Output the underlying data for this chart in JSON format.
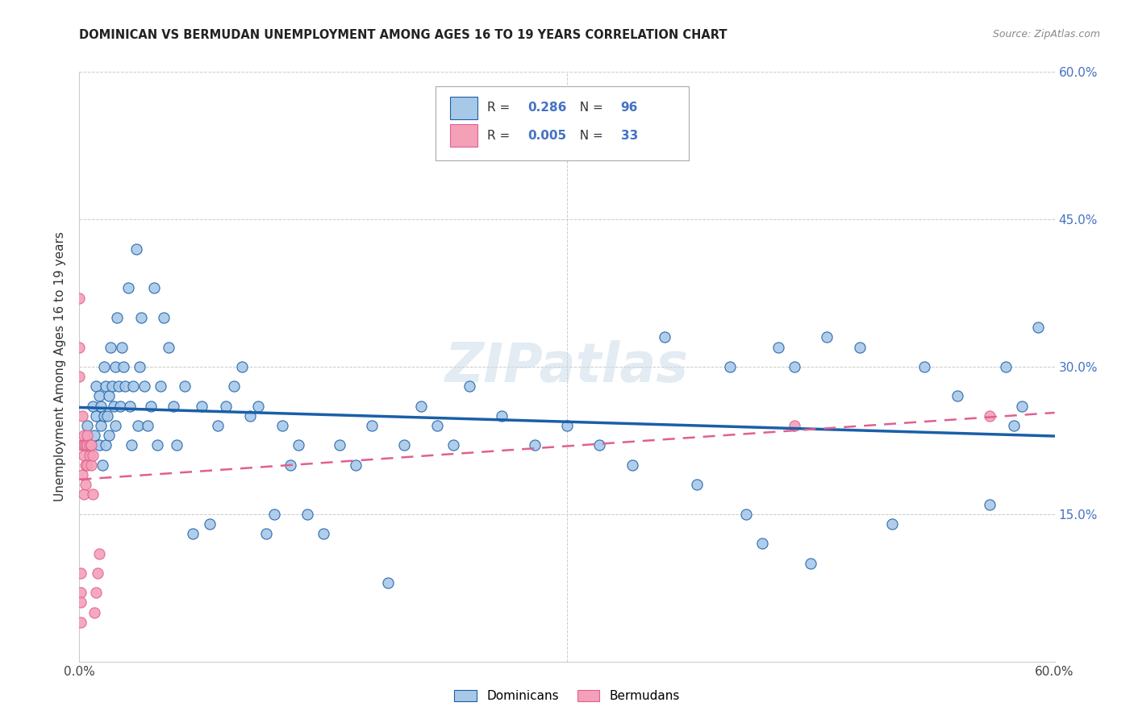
{
  "title": "DOMINICAN VS BERMUDAN UNEMPLOYMENT AMONG AGES 16 TO 19 YEARS CORRELATION CHART",
  "source": "Source: ZipAtlas.com",
  "ylabel": "Unemployment Among Ages 16 to 19 years",
  "legend_label1": "Dominicans",
  "legend_label2": "Bermudans",
  "R1": "0.286",
  "N1": "96",
  "R2": "0.005",
  "N2": "33",
  "xlim": [
    0.0,
    0.6
  ],
  "ylim": [
    0.0,
    0.6
  ],
  "xtick_vals": [
    0.0,
    0.6
  ],
  "xtick_labels": [
    "0.0%",
    "60.0%"
  ],
  "ytick_vals": [
    0.15,
    0.3,
    0.45,
    0.6
  ],
  "ytick_labels": [
    "15.0%",
    "30.0%",
    "45.0%",
    "60.0%"
  ],
  "color_blue": "#a8c8e8",
  "color_pink": "#f4a0b8",
  "color_trendline_blue": "#1a5fa8",
  "color_trendline_pink": "#e06090",
  "background_color": "#ffffff",
  "watermark": "ZIPatlas",
  "dominicans_x": [
    0.005,
    0.007,
    0.008,
    0.009,
    0.01,
    0.01,
    0.012,
    0.012,
    0.013,
    0.013,
    0.014,
    0.015,
    0.015,
    0.016,
    0.016,
    0.017,
    0.018,
    0.018,
    0.019,
    0.02,
    0.021,
    0.022,
    0.022,
    0.023,
    0.024,
    0.025,
    0.026,
    0.027,
    0.028,
    0.03,
    0.031,
    0.032,
    0.033,
    0.035,
    0.036,
    0.037,
    0.038,
    0.04,
    0.042,
    0.044,
    0.046,
    0.048,
    0.05,
    0.052,
    0.055,
    0.058,
    0.06,
    0.065,
    0.07,
    0.075,
    0.08,
    0.085,
    0.09,
    0.095,
    0.1,
    0.105,
    0.11,
    0.115,
    0.12,
    0.125,
    0.13,
    0.135,
    0.14,
    0.15,
    0.16,
    0.17,
    0.18,
    0.19,
    0.2,
    0.21,
    0.22,
    0.23,
    0.24,
    0.26,
    0.28,
    0.3,
    0.32,
    0.34,
    0.36,
    0.38,
    0.4,
    0.41,
    0.42,
    0.43,
    0.44,
    0.45,
    0.46,
    0.48,
    0.5,
    0.52,
    0.54,
    0.56,
    0.57,
    0.575,
    0.58,
    0.59
  ],
  "dominicans_y": [
    0.24,
    0.22,
    0.26,
    0.23,
    0.25,
    0.28,
    0.22,
    0.27,
    0.24,
    0.26,
    0.2,
    0.25,
    0.3,
    0.22,
    0.28,
    0.25,
    0.23,
    0.27,
    0.32,
    0.28,
    0.26,
    0.24,
    0.3,
    0.35,
    0.28,
    0.26,
    0.32,
    0.3,
    0.28,
    0.38,
    0.26,
    0.22,
    0.28,
    0.42,
    0.24,
    0.3,
    0.35,
    0.28,
    0.24,
    0.26,
    0.38,
    0.22,
    0.28,
    0.35,
    0.32,
    0.26,
    0.22,
    0.28,
    0.13,
    0.26,
    0.14,
    0.24,
    0.26,
    0.28,
    0.3,
    0.25,
    0.26,
    0.13,
    0.15,
    0.24,
    0.2,
    0.22,
    0.15,
    0.13,
    0.22,
    0.2,
    0.24,
    0.08,
    0.22,
    0.26,
    0.24,
    0.22,
    0.28,
    0.25,
    0.22,
    0.24,
    0.22,
    0.2,
    0.33,
    0.18,
    0.3,
    0.15,
    0.12,
    0.32,
    0.3,
    0.1,
    0.33,
    0.32,
    0.14,
    0.3,
    0.27,
    0.16,
    0.3,
    0.24,
    0.26,
    0.34
  ],
  "bermudans_x": [
    0.0,
    0.0,
    0.0,
    0.001,
    0.001,
    0.001,
    0.001,
    0.002,
    0.002,
    0.002,
    0.002,
    0.003,
    0.003,
    0.003,
    0.003,
    0.004,
    0.004,
    0.004,
    0.005,
    0.005,
    0.005,
    0.006,
    0.006,
    0.007,
    0.007,
    0.008,
    0.008,
    0.009,
    0.01,
    0.011,
    0.012,
    0.44,
    0.56
  ],
  "bermudans_y": [
    0.37,
    0.32,
    0.29,
    0.07,
    0.09,
    0.04,
    0.06,
    0.22,
    0.25,
    0.22,
    0.19,
    0.23,
    0.21,
    0.17,
    0.22,
    0.2,
    0.18,
    0.22,
    0.2,
    0.22,
    0.23,
    0.21,
    0.22,
    0.2,
    0.22,
    0.21,
    0.17,
    0.05,
    0.07,
    0.09,
    0.11,
    0.24,
    0.25
  ]
}
